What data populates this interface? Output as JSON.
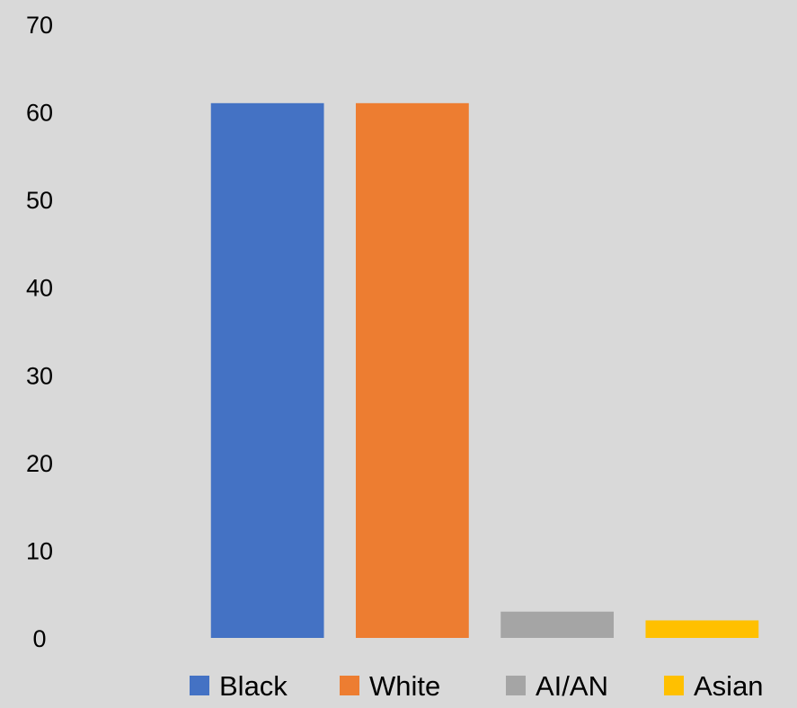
{
  "chart_data": {
    "type": "bar",
    "categories": [
      "Black",
      "White",
      "AI/AN",
      "Asian"
    ],
    "series": [
      {
        "name": "Black",
        "values": [
          61,
          null,
          null,
          null
        ],
        "color": "#4472c4"
      },
      {
        "name": "White",
        "values": [
          null,
          61,
          null,
          null
        ],
        "color": "#ed7d31"
      },
      {
        "name": "AI/AN",
        "values": [
          null,
          null,
          3,
          null
        ],
        "color": "#a5a5a5"
      },
      {
        "name": "Asian",
        "values": [
          null,
          null,
          null,
          2
        ],
        "color": "#ffc000"
      }
    ],
    "bars": [
      {
        "name": "Black",
        "value": 61,
        "color": "#4472c4"
      },
      {
        "name": "White",
        "value": 61,
        "color": "#ed7d31"
      },
      {
        "name": "AI/AN",
        "value": 3,
        "color": "#a5a5a5"
      },
      {
        "name": "Asian",
        "value": 2,
        "color": "#ffc000"
      }
    ],
    "title": "",
    "xlabel": "",
    "ylabel": "",
    "ylim": [
      0,
      70
    ],
    "yticks": [
      "0",
      "10",
      "20",
      "30",
      "40",
      "50",
      "60",
      "70"
    ],
    "grid": false,
    "legend": {
      "position": "bottom",
      "items": [
        "Black",
        "White",
        "AI/AN",
        "Asian"
      ]
    },
    "background": "#d9d9d9"
  }
}
